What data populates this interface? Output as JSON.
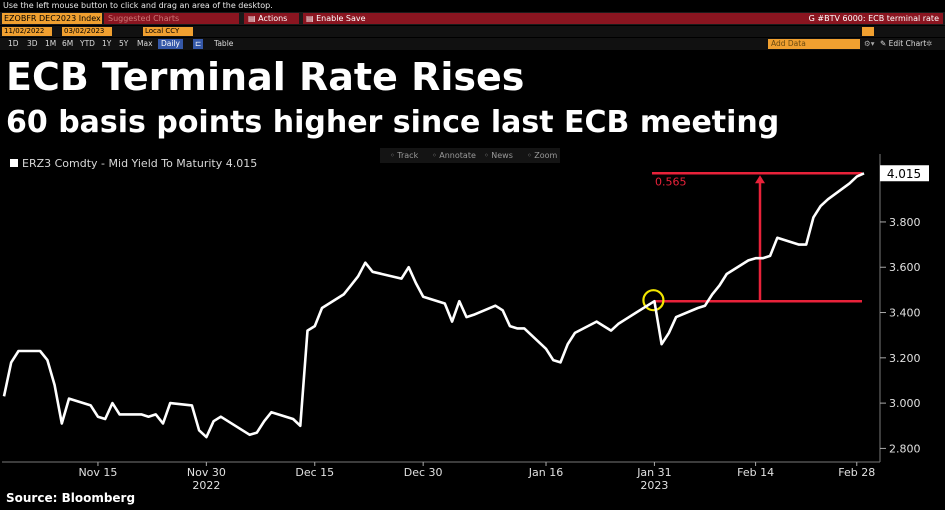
{
  "topbar": {
    "hint": "Use the left mouse button to click and drag an area of the desktop.",
    "security": "EZOBFR DEC2023 Index",
    "suggested": "Suggested Charts",
    "actions": "Actions",
    "enable_save": "Enable Save",
    "function_title": "G #BTV 6000: ECB terminal rate",
    "date_from": "11/02/2022",
    "date_to": "03/02/2023",
    "currency": "Local CCY",
    "periods": [
      "1D",
      "3D",
      "1M",
      "6M",
      "YTD",
      "1Y",
      "5Y",
      "Max"
    ],
    "frequency": "Daily",
    "table": "Table",
    "edit_chart": "Edit Chart",
    "add_data": "Add Data"
  },
  "headline": {
    "title": "ECB Terminal Rate Rises",
    "subtitle": "60 basis points higher since last ECB meeting"
  },
  "toolbar": [
    "Track",
    "Annotate",
    "News",
    "Zoom"
  ],
  "source": "Source: Bloomberg",
  "colors": {
    "line": "#ffffff",
    "annotation": "#e8223a",
    "highlight": "#f2e600",
    "background": "#000000"
  },
  "chart_data": {
    "type": "line",
    "series": [
      {
        "name": "ERZ3 Comdty - Mid Yield To Maturity 4.015",
        "x": [
          "2022-11-02",
          "2022-11-03",
          "2022-11-04",
          "2022-11-07",
          "2022-11-08",
          "2022-11-09",
          "2022-11-10",
          "2022-11-11",
          "2022-11-14",
          "2022-11-15",
          "2022-11-16",
          "2022-11-17",
          "2022-11-18",
          "2022-11-21",
          "2022-11-22",
          "2022-11-23",
          "2022-11-24",
          "2022-11-25",
          "2022-11-28",
          "2022-11-29",
          "2022-11-30",
          "2022-12-01",
          "2022-12-02",
          "2022-12-05",
          "2022-12-06",
          "2022-12-07",
          "2022-12-08",
          "2022-12-09",
          "2022-12-12",
          "2022-12-13",
          "2022-12-14",
          "2022-12-15",
          "2022-12-16",
          "2022-12-19",
          "2022-12-20",
          "2022-12-21",
          "2022-12-22",
          "2022-12-23",
          "2022-12-27",
          "2022-12-28",
          "2022-12-29",
          "2022-12-30",
          "2023-01-02",
          "2023-01-03",
          "2023-01-04",
          "2023-01-05",
          "2023-01-06",
          "2023-01-09",
          "2023-01-10",
          "2023-01-11",
          "2023-01-12",
          "2023-01-13",
          "2023-01-16",
          "2023-01-17",
          "2023-01-18",
          "2023-01-19",
          "2023-01-20",
          "2023-01-23",
          "2023-01-24",
          "2023-01-25",
          "2023-01-26",
          "2023-01-27",
          "2023-01-30",
          "2023-01-31",
          "2023-02-01",
          "2023-02-02",
          "2023-02-03",
          "2023-02-06",
          "2023-02-07",
          "2023-02-08",
          "2023-02-09",
          "2023-02-10",
          "2023-02-13",
          "2023-02-14",
          "2023-02-15",
          "2023-02-16",
          "2023-02-17",
          "2023-02-20",
          "2023-02-21",
          "2023-02-22",
          "2023-02-23",
          "2023-02-24",
          "2023-02-27",
          "2023-02-28",
          "2023-03-01"
        ],
        "y": [
          3.03,
          3.18,
          3.23,
          3.23,
          3.19,
          3.08,
          2.91,
          3.02,
          2.99,
          2.94,
          2.93,
          3.0,
          2.95,
          2.95,
          2.94,
          2.95,
          2.91,
          3.0,
          2.99,
          2.88,
          2.85,
          2.92,
          2.94,
          2.88,
          2.86,
          2.87,
          2.92,
          2.96,
          2.93,
          2.9,
          3.32,
          3.34,
          3.42,
          3.48,
          3.52,
          3.56,
          3.62,
          3.58,
          3.55,
          3.6,
          3.53,
          3.47,
          3.44,
          3.36,
          3.45,
          3.38,
          3.39,
          3.43,
          3.41,
          3.34,
          3.33,
          3.33,
          3.24,
          3.19,
          3.18,
          3.26,
          3.31,
          3.36,
          3.34,
          3.32,
          3.35,
          3.37,
          3.43,
          3.45,
          3.26,
          3.31,
          3.38,
          3.42,
          3.43,
          3.48,
          3.52,
          3.57,
          3.63,
          3.64,
          3.64,
          3.65,
          3.73,
          3.7,
          3.7,
          3.82,
          3.87,
          3.9,
          3.97,
          4.0,
          4.015
        ]
      }
    ],
    "xlabel": "",
    "ylabel": "",
    "ylim": [
      2.74,
      4.1
    ],
    "yticks": [
      2.8,
      3.0,
      3.2,
      3.4,
      3.6,
      3.8,
      4.0
    ],
    "ytick_labels": [
      "2.800",
      "3.000",
      "3.200",
      "3.400",
      "3.600",
      "3.800",
      "4.000"
    ],
    "xticks": [
      {
        "date": "2022-11-15",
        "label": "Nov 15"
      },
      {
        "date": "2022-11-30",
        "label": "Nov 30"
      },
      {
        "date": "2022-12-15",
        "label": "Dec 15"
      },
      {
        "date": "2022-12-30",
        "label": "Dec 30"
      },
      {
        "date": "2023-01-16",
        "label": "Jan 16"
      },
      {
        "date": "2023-01-31",
        "label": "Jan 31"
      },
      {
        "date": "2023-02-14",
        "label": "Feb 14"
      },
      {
        "date": "2023-02-28",
        "label": "Feb 28"
      }
    ],
    "year_labels": [
      {
        "date": "2022-11-30",
        "label": "2022"
      },
      {
        "date": "2023-01-31",
        "label": "2023"
      }
    ],
    "last_value_label": "4.015",
    "annotation": {
      "label": "0.565",
      "from_date": "2023-01-31",
      "from_value": 3.45,
      "to_date": "2023-03-01",
      "to_value": 4.015,
      "highlight_date": "2023-01-31",
      "highlight_value": 3.45
    },
    "grid": false,
    "legend": "top-left"
  }
}
